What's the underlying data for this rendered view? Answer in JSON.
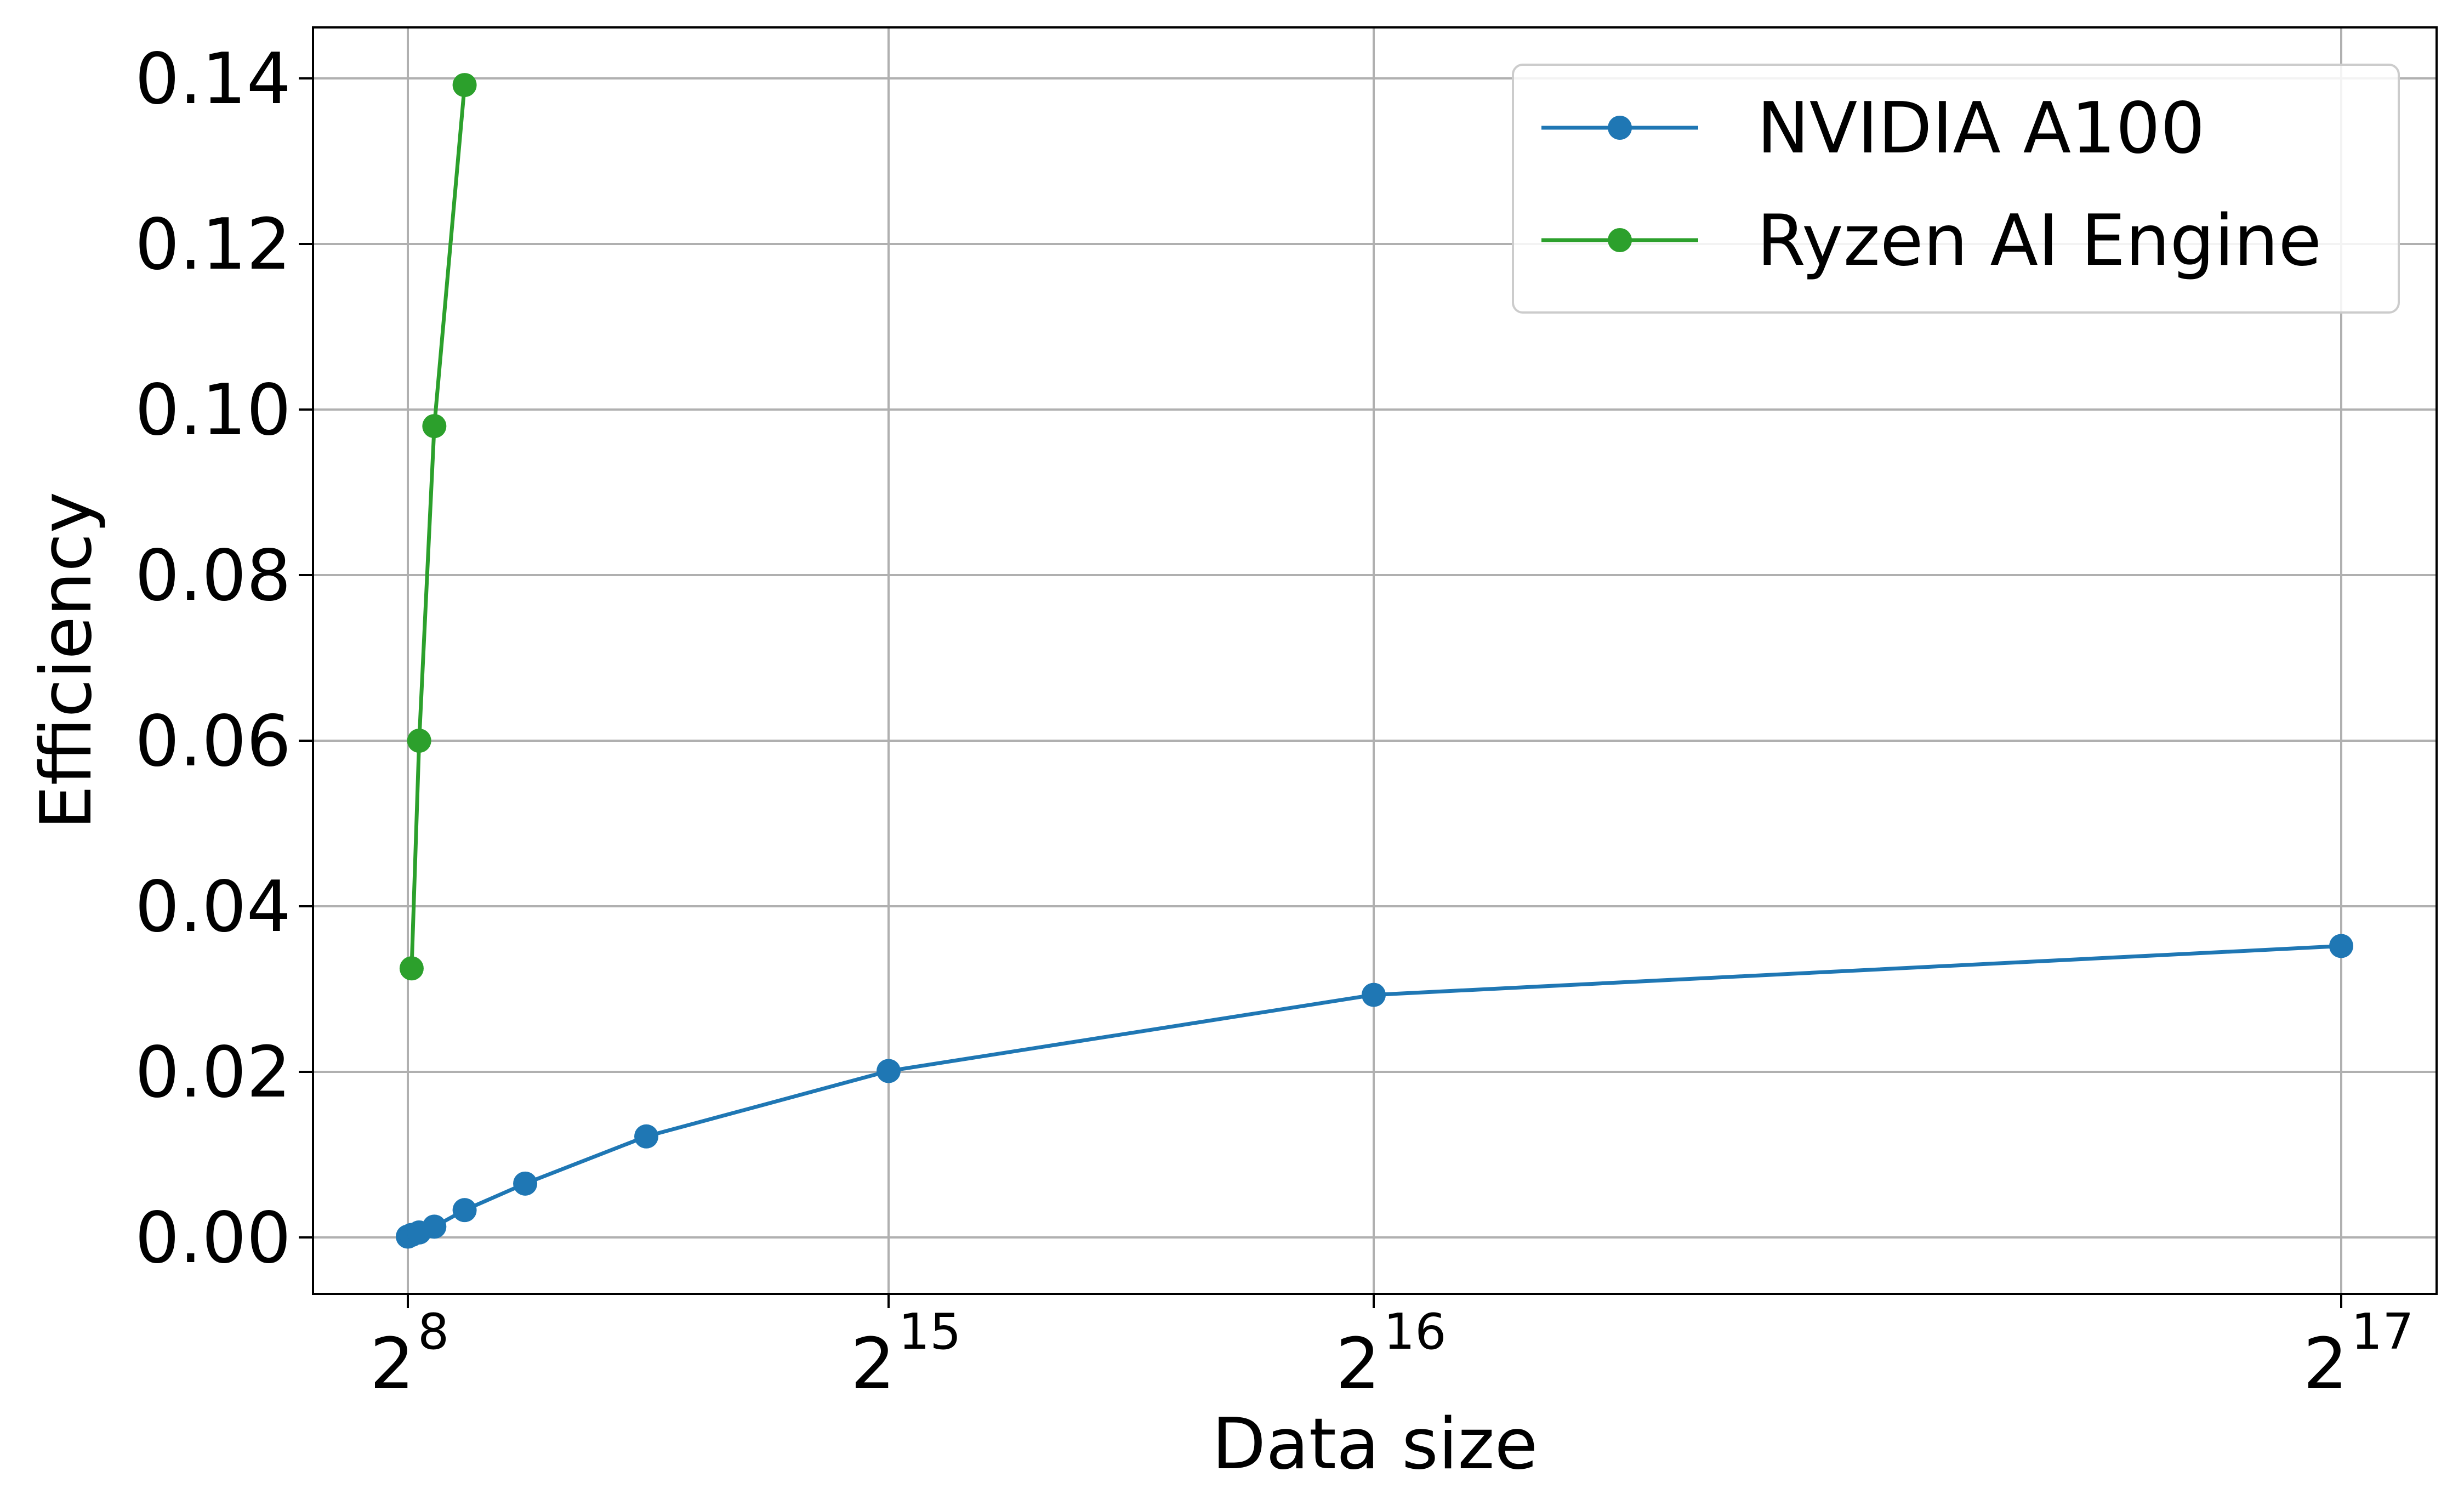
{
  "chart_data": {
    "type": "line",
    "xlabel": "Data size",
    "ylabel": "Efficiency",
    "x_scale": "custom-power-of-two-ticks",
    "x_ticks": [
      {
        "value": 256,
        "base": "2",
        "exp": "8"
      },
      {
        "value": 32768,
        "base": "2",
        "exp": "15"
      },
      {
        "value": 65536,
        "base": "2",
        "exp": "16"
      },
      {
        "value": 131072,
        "base": "2",
        "exp": "17"
      }
    ],
    "y_ticks": [
      "0.00",
      "0.02",
      "0.04",
      "0.06",
      "0.08",
      "0.10",
      "0.12",
      "0.14"
    ],
    "ylim": [
      -0.0068,
      0.1463
    ],
    "grid": true,
    "legend_position": "top-right",
    "series": [
      {
        "name": "NVIDIA A100",
        "color": "#1f77b4",
        "marker": "circle",
        "x": [
          256,
          512,
          1024,
          2048,
          4096,
          8192,
          16384,
          32768,
          65536,
          131072
        ],
        "y": [
          0.0001,
          0.0003,
          0.0006,
          0.0013,
          0.0033,
          0.0065,
          0.0122,
          0.0201,
          0.0293,
          0.0352
        ]
      },
      {
        "name": "Ryzen AI Engine",
        "color": "#2ca02c",
        "marker": "circle",
        "x": [
          512,
          1024,
          2048,
          4096
        ],
        "y": [
          0.0325,
          0.06,
          0.098,
          0.1392
        ]
      }
    ]
  }
}
